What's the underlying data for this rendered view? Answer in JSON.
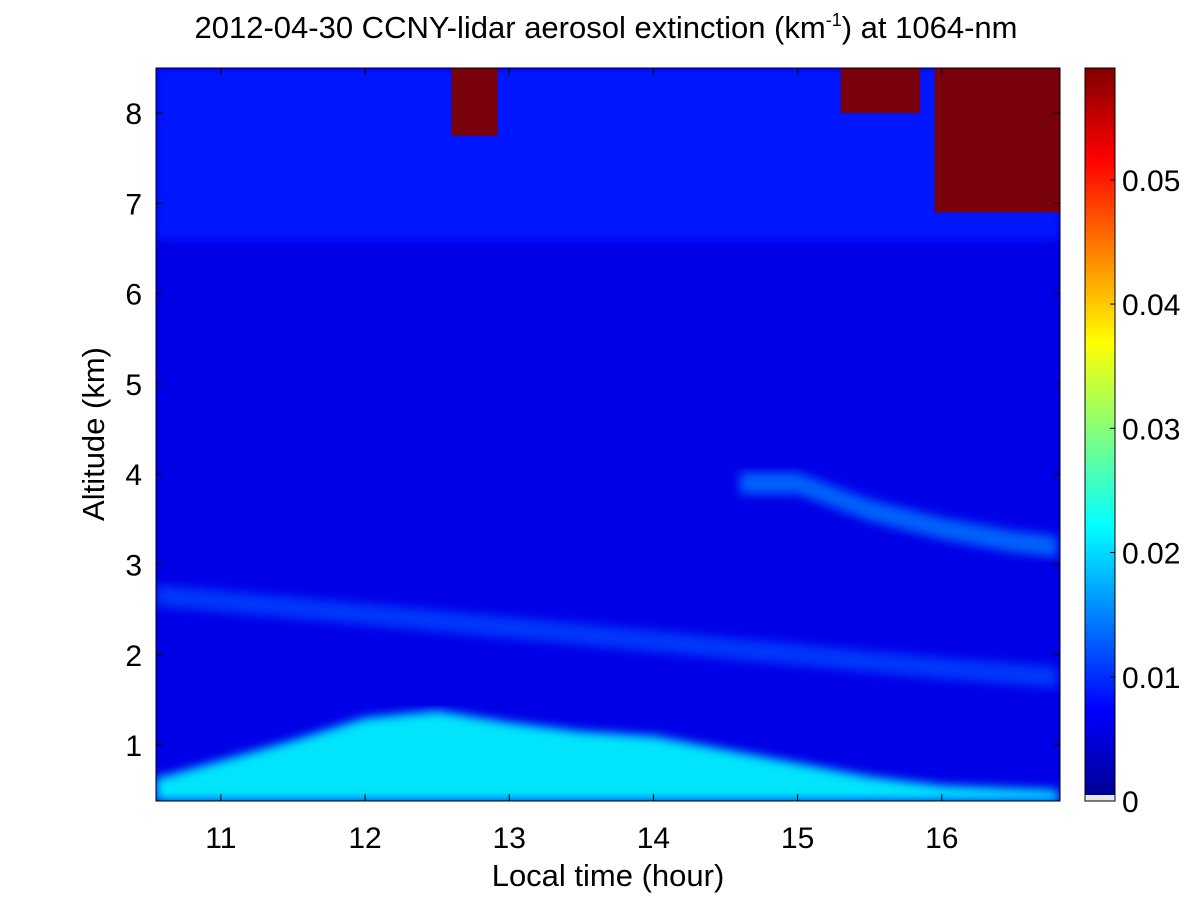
{
  "chart_data": {
    "type": "heatmap",
    "title_main": "2012-04-30 CCNY-lidar aerosol extinction (km",
    "title_sup": "-1",
    "title_tail": ") at 1064-nm",
    "xlabel": "Local time (hour)",
    "ylabel": "Altitude (km)",
    "xlim": [
      10.55,
      16.82
    ],
    "ylim": [
      0.38,
      8.5
    ],
    "xticks": [
      11,
      12,
      13,
      14,
      15,
      16
    ],
    "yticks": [
      1,
      2,
      3,
      4,
      5,
      6,
      7,
      8
    ],
    "colorbar": {
      "colormap": "jet",
      "range": [
        0,
        0.059
      ],
      "ticks": [
        0,
        0.01,
        0.02,
        0.03,
        0.04,
        0.05
      ],
      "ticklabels": [
        "0",
        "0.01",
        "0.02",
        "0.03",
        "0.04",
        "0.05"
      ]
    },
    "features": [
      {
        "name": "boundary layer",
        "t_start": 10.55,
        "t_end": 16.82,
        "top_km": [
          [
            10.6,
            0.65
          ],
          [
            11.5,
            1.05
          ],
          [
            12.0,
            1.3
          ],
          [
            12.5,
            1.38
          ],
          [
            13.0,
            1.25
          ],
          [
            13.5,
            1.15
          ],
          [
            14.0,
            1.1
          ],
          [
            14.5,
            0.95
          ],
          [
            15.0,
            0.8
          ],
          [
            15.5,
            0.65
          ],
          [
            16.0,
            0.55
          ],
          [
            16.8,
            0.5
          ]
        ],
        "extinction": 0.022
      },
      {
        "name": "aerosol layer",
        "t_start": 10.55,
        "t_end": 16.82,
        "alt_km": [
          [
            10.6,
            2.65
          ],
          [
            12.0,
            2.45
          ],
          [
            13.0,
            2.3
          ],
          [
            14.0,
            2.15
          ],
          [
            15.0,
            2.0
          ],
          [
            16.0,
            1.85
          ],
          [
            16.8,
            1.75
          ]
        ],
        "extinction": 0.011
      },
      {
        "name": "elevated layer",
        "t_start": 14.6,
        "t_end": 16.82,
        "alt_km": [
          [
            14.6,
            3.9
          ],
          [
            15.0,
            3.9
          ],
          [
            15.5,
            3.6
          ],
          [
            16.0,
            3.4
          ],
          [
            16.5,
            3.25
          ],
          [
            16.8,
            3.2
          ]
        ],
        "extinction": 0.014
      },
      {
        "name": "cirrus cloud",
        "t_start": 15.95,
        "t_end": 16.82,
        "alt_range_km": [
          6.9,
          8.5
        ],
        "extinction": 0.059
      },
      {
        "name": "cirrus cloud",
        "t_start": 15.3,
        "t_end": 15.85,
        "alt_range_km": [
          8.0,
          8.5
        ],
        "extinction": 0.059
      },
      {
        "name": "cirrus cloud",
        "t_start": 12.6,
        "t_end": 12.92,
        "alt_range_km": [
          7.75,
          8.5
        ],
        "extinction": 0.059
      }
    ]
  }
}
